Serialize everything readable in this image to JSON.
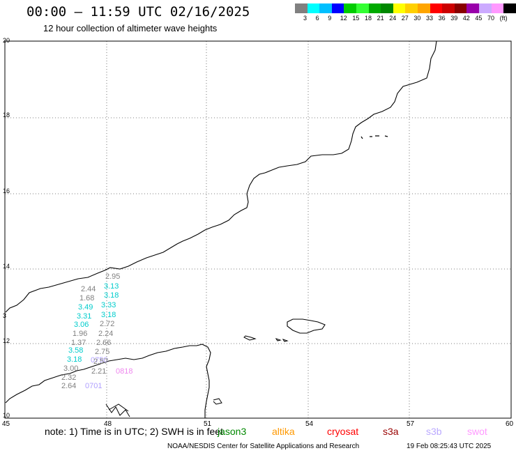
{
  "header": {
    "title": "00:00 — 11:59 UTC 02/16/2025",
    "subtitle": "12 hour collection of altimeter wave heights"
  },
  "color_scale": {
    "colors": [
      "#808080",
      "#00ffff",
      "#00bfff",
      "#0000ff",
      "#00cc00",
      "#33ff33",
      "#00aa00",
      "#008800",
      "#ffff00",
      "#ffd000",
      "#ffa500",
      "#ff0000",
      "#cc0000",
      "#880000",
      "#9900aa",
      "#ccaaff",
      "#ff99ff",
      "#000000"
    ],
    "labels": [
      "3",
      "6",
      "9",
      "12",
      "15",
      "18",
      "21",
      "24",
      "27",
      "30",
      "33",
      "36",
      "39",
      "42",
      "45",
      "70",
      "(ft)"
    ]
  },
  "map": {
    "lat_labels": [
      "20",
      "18",
      "16",
      "14",
      "12",
      "10"
    ],
    "lon_labels": [
      "45",
      "48",
      "51",
      "54",
      "57",
      "60"
    ],
    "west_edge_label": "3",
    "wave_heights": [
      {
        "text": "2.95",
        "color": "#808080"
      },
      {
        "text": "2.44",
        "color": "#808080"
      },
      {
        "text": "3.13",
        "color": "#00cccc"
      },
      {
        "text": "1.68",
        "color": "#808080"
      },
      {
        "text": "3.18",
        "color": "#00cccc"
      },
      {
        "text": "3.49",
        "color": "#00cccc"
      },
      {
        "text": "3.33",
        "color": "#00cccc"
      },
      {
        "text": "3.31",
        "color": "#00cccc"
      },
      {
        "text": "3.18",
        "color": "#00cccc"
      },
      {
        "text": "3.06",
        "color": "#00cccc"
      },
      {
        "text": "2.72",
        "color": "#808080"
      },
      {
        "text": "1.96",
        "color": "#808080"
      },
      {
        "text": "2.24",
        "color": "#808080"
      },
      {
        "text": "1.37",
        "color": "#808080"
      },
      {
        "text": "2.66",
        "color": "#808080"
      },
      {
        "text": "3.58",
        "color": "#00cccc"
      },
      {
        "text": "2.75",
        "color": "#808080"
      },
      {
        "text": "3.18",
        "color": "#00cccc"
      },
      {
        "text": "0750",
        "color": "#b0a0ff"
      },
      {
        "text": "2.57",
        "color": "#808080"
      },
      {
        "text": "3.00",
        "color": "#808080"
      },
      {
        "text": "2.21",
        "color": "#808080"
      },
      {
        "text": "0818",
        "color": "#ee88ee"
      },
      {
        "text": "2.32",
        "color": "#808080"
      },
      {
        "text": "2.64",
        "color": "#808080"
      },
      {
        "text": "0701",
        "color": "#b0a0ff"
      }
    ]
  },
  "footer": {
    "note": "note: 1) Time is in UTC; 2) SWH is in feet",
    "satellites": [
      {
        "name": "jason3",
        "color": "#008800"
      },
      {
        "name": "altika",
        "color": "#ff9900"
      },
      {
        "name": "cryosat",
        "color": "#ff0000"
      },
      {
        "name": "s3a",
        "color": "#990000"
      },
      {
        "name": "s3b",
        "color": "#bbaaff"
      },
      {
        "name": "swot",
        "color": "#ff99ff"
      }
    ],
    "credit": "NOAA/NESDIS Center for Satellite Applications and Research",
    "timestamp": "19 Feb 08:25:43 UTC 2025"
  }
}
